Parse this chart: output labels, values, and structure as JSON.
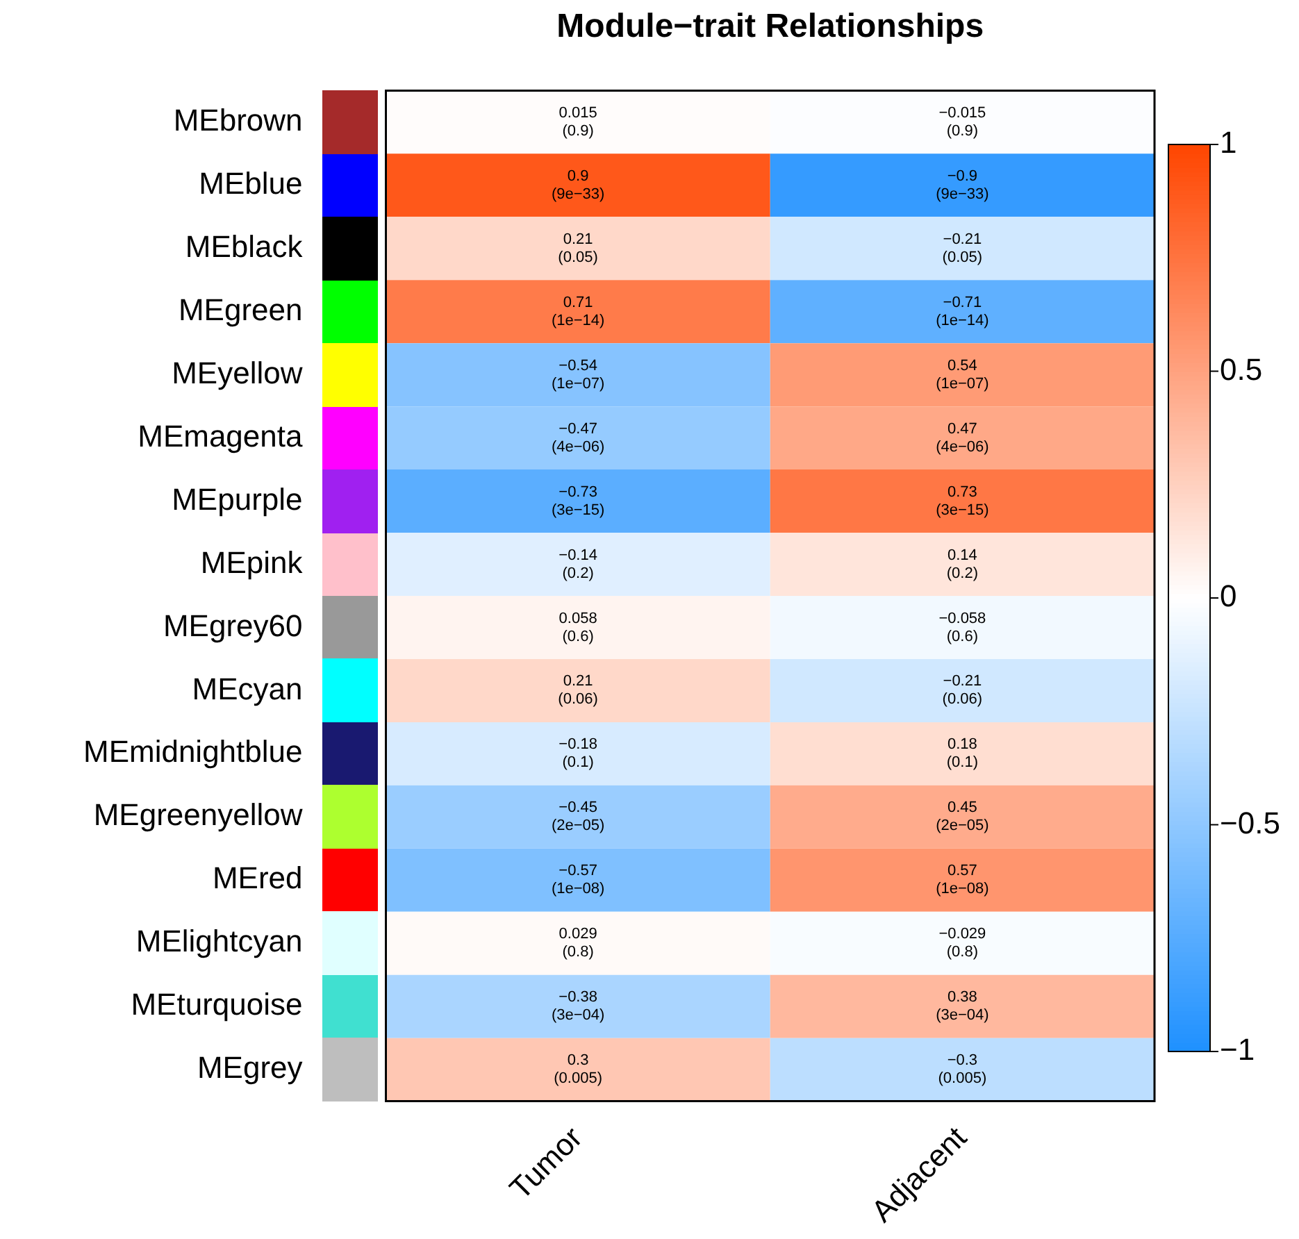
{
  "chart_data": {
    "type": "heatmap",
    "title": "Module−trait Relationships",
    "categories": [
      "Tumor",
      "Adjacent"
    ],
    "y_categories": [
      "MEbrown",
      "MEblue",
      "MEblack",
      "MEgreen",
      "MEyellow",
      "MEmagenta",
      "MEpurple",
      "MEpink",
      "MEgrey60",
      "MEcyan",
      "MEmidnightblue",
      "MEgreenyellow",
      "MEred",
      "MElightcyan",
      "MEturquoise",
      "MEgrey"
    ],
    "colors": [
      "#a52a2a",
      "#0000ff",
      "#000000",
      "#00ff00",
      "#ffff00",
      "#ff00ff",
      "#a020f0",
      "#ffc0cb",
      "#999999",
      "#00ffff",
      "#191970",
      "#adff2f",
      "#ff0000",
      "#e0ffff",
      "#40e0d0",
      "#bebebe"
    ],
    "cells": [
      [
        0.015,
        -0.015
      ],
      [
        0.9,
        -0.9
      ],
      [
        0.21,
        -0.21
      ],
      [
        0.71,
        -0.71
      ],
      [
        -0.54,
        0.54
      ],
      [
        -0.47,
        0.47
      ],
      [
        -0.73,
        0.73
      ],
      [
        -0.14,
        0.14
      ],
      [
        0.058,
        -0.058
      ],
      [
        0.21,
        -0.21
      ],
      [
        -0.18,
        0.18
      ],
      [
        -0.45,
        0.45
      ],
      [
        -0.57,
        0.57
      ],
      [
        0.029,
        -0.029
      ],
      [
        -0.38,
        0.38
      ],
      [
        0.3,
        -0.3
      ]
    ],
    "cell_labels": [
      [
        "0.015\n(0.9)",
        "−0.015\n(0.9)"
      ],
      [
        "0.9\n(9e−33)",
        "−0.9\n(9e−33)"
      ],
      [
        "0.21\n(0.05)",
        "−0.21\n(0.05)"
      ],
      [
        "0.71\n(1e−14)",
        "−0.71\n(1e−14)"
      ],
      [
        "−0.54\n(1e−07)",
        "0.54\n(1e−07)"
      ],
      [
        "−0.47\n(4e−06)",
        "0.47\n(4e−06)"
      ],
      [
        "−0.73\n(3e−15)",
        "0.73\n(3e−15)"
      ],
      [
        "−0.14\n(0.2)",
        "0.14\n(0.2)"
      ],
      [
        "0.058\n(0.6)",
        "−0.058\n(0.6)"
      ],
      [
        "0.21\n(0.06)",
        "−0.21\n(0.06)"
      ],
      [
        "−0.18\n(0.1)",
        "0.18\n(0.1)"
      ],
      [
        "−0.45\n(2e−05)",
        "0.45\n(2e−05)"
      ],
      [
        "−0.57\n(1e−08)",
        "0.57\n(1e−08)"
      ],
      [
        "0.029\n(0.8)",
        "−0.029\n(0.8)"
      ],
      [
        "−0.38\n(3e−04)",
        "0.38\n(3e−04)"
      ],
      [
        "0.3\n(0.005)",
        "−0.3\n(0.005)"
      ]
    ],
    "clim": [
      -1,
      1
    ],
    "cticks": [
      {
        "value": -1,
        "label": "−1"
      },
      {
        "value": -0.5,
        "label": "−0.5"
      },
      0,
      {
        "value": 0.5,
        "label": "0.5"
      },
      1
    ]
  }
}
